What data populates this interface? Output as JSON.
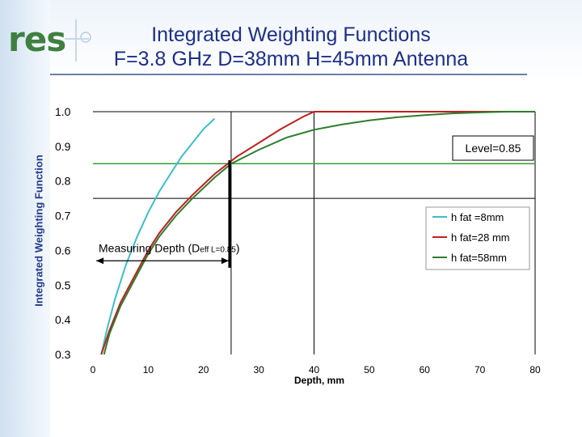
{
  "title_line1": "Integrated Weighting Functions",
  "title_line2": "F=3.8 GHz D=38mm H=45mm Antenna",
  "logo": "res",
  "colors": {
    "title": "#1e2f8a",
    "series1": "#3bbfc8",
    "series2": "#c0201e",
    "series3": "#2e7d2e",
    "level_line": "#3a9a3a"
  },
  "chart_data": {
    "type": "line",
    "title": "Integrated Weighting Functions F=3.8 GHz D=38mm H=45mm Antenna",
    "xlabel": "Depth, mm",
    "ylabel": "Integrated Weighting Function",
    "xlim": [
      0,
      80
    ],
    "ylim": [
      0.3,
      1.0
    ],
    "xticks": [
      "0",
      "10",
      "20",
      "30",
      "40",
      "50",
      "60",
      "70",
      "80"
    ],
    "yticks": [
      "1.0",
      "0.9",
      "0.8",
      "0.7",
      "0.6",
      "0.5",
      "0.4",
      "0.3"
    ],
    "series": [
      {
        "name": "h fat =8mm",
        "x": [
          1.5,
          2.5,
          4,
          6,
          8,
          10,
          12,
          14,
          16,
          18,
          20,
          22
        ],
        "y": [
          0.3,
          0.37,
          0.46,
          0.56,
          0.64,
          0.71,
          0.77,
          0.82,
          0.87,
          0.91,
          0.95,
          0.98
        ]
      },
      {
        "name": "h fat=28 mm",
        "x": [
          1.5,
          3,
          5,
          8,
          10,
          12,
          15,
          18,
          20,
          22,
          24,
          26,
          30,
          34,
          38,
          40,
          80
        ],
        "y": [
          0.3,
          0.37,
          0.45,
          0.54,
          0.6,
          0.65,
          0.71,
          0.76,
          0.79,
          0.82,
          0.845,
          0.87,
          0.91,
          0.95,
          0.985,
          1.0,
          1.0
        ]
      },
      {
        "name": "h fat=58mm",
        "x": [
          2,
          3,
          5,
          8,
          10,
          12,
          15,
          18,
          20,
          22,
          25,
          30,
          35,
          40,
          45,
          50,
          55,
          60,
          65,
          70,
          75,
          80
        ],
        "y": [
          0.3,
          0.36,
          0.44,
          0.53,
          0.59,
          0.64,
          0.7,
          0.75,
          0.78,
          0.81,
          0.85,
          0.89,
          0.925,
          0.948,
          0.963,
          0.975,
          0.984,
          0.99,
          0.995,
          0.998,
          1.0,
          1.0
        ]
      }
    ],
    "grid_x": [
      25,
      40,
      80
    ],
    "grid_y": [
      0.75,
      1.0
    ],
    "level": 0.85,
    "level_label": "Level=0.85",
    "measure_depth_x": 25,
    "measure_y": 0.57,
    "annotation_main": "Measuring Depth (D",
    "annotation_sub": "eff L=0.85",
    "annotation_close": ")",
    "legend_position": "right"
  }
}
